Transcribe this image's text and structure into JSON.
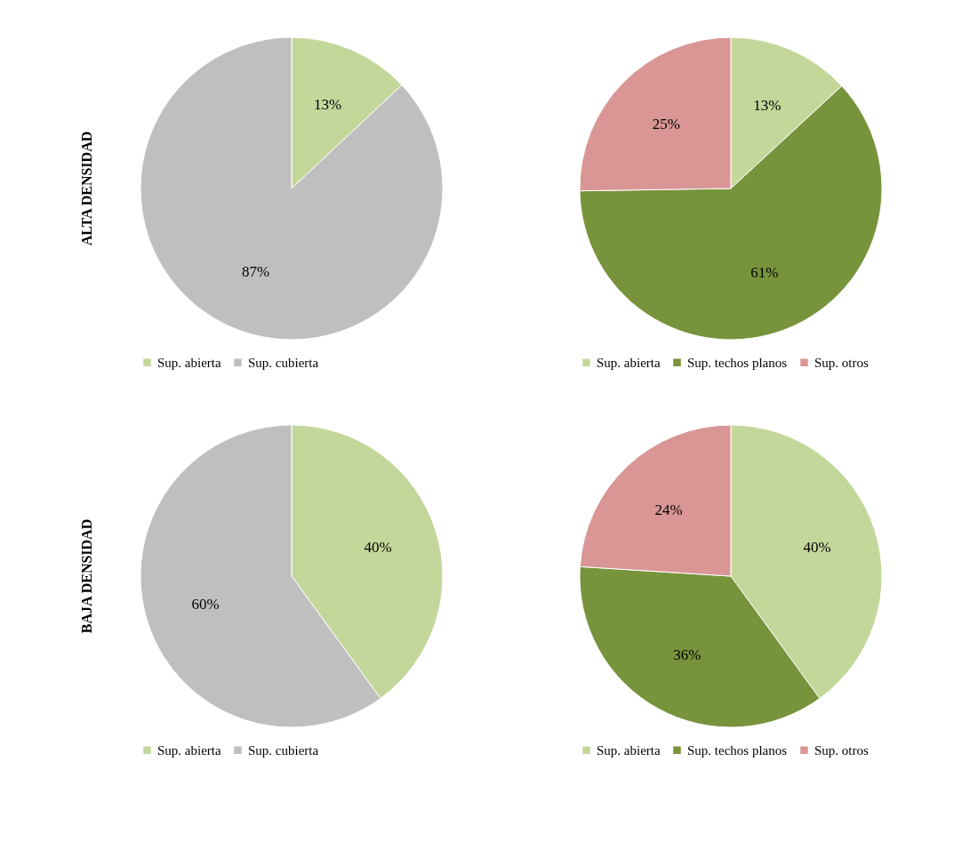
{
  "chart_data": [
    {
      "type": "pie",
      "ylabel": "ALTA DENSIDAD",
      "categories": [
        "Sup. abierta",
        "Sup. cubierta"
      ],
      "values": [
        13,
        87
      ],
      "value_labels": [
        "13%",
        "87%"
      ],
      "colors": [
        "#c4d79b",
        "#bfbfbf"
      ],
      "legend": "bottom"
    },
    {
      "type": "pie",
      "categories": [
        "Sup. abierta",
        "Sup. techos planos",
        "Sup. otros"
      ],
      "values": [
        13,
        61,
        25
      ],
      "value_labels": [
        "13%",
        "61%",
        "25%"
      ],
      "colors": [
        "#c4d79b",
        "#77933c",
        "#d99694"
      ],
      "legend": "bottom"
    },
    {
      "type": "pie",
      "ylabel": "BAJA DENSIDAD",
      "categories": [
        "Sup. abierta",
        "Sup. cubierta"
      ],
      "values": [
        40,
        60
      ],
      "value_labels": [
        "40%",
        "60%"
      ],
      "colors": [
        "#c4d79b",
        "#bfbfbf"
      ],
      "legend": "bottom"
    },
    {
      "type": "pie",
      "categories": [
        "Sup. abierta",
        "Sup. techos planos",
        "Sup. otros"
      ],
      "values": [
        40,
        36,
        24
      ],
      "value_labels": [
        "40%",
        "36%",
        "24%"
      ],
      "colors": [
        "#c4d79b",
        "#77933c",
        "#d99694"
      ],
      "legend": "bottom"
    }
  ]
}
